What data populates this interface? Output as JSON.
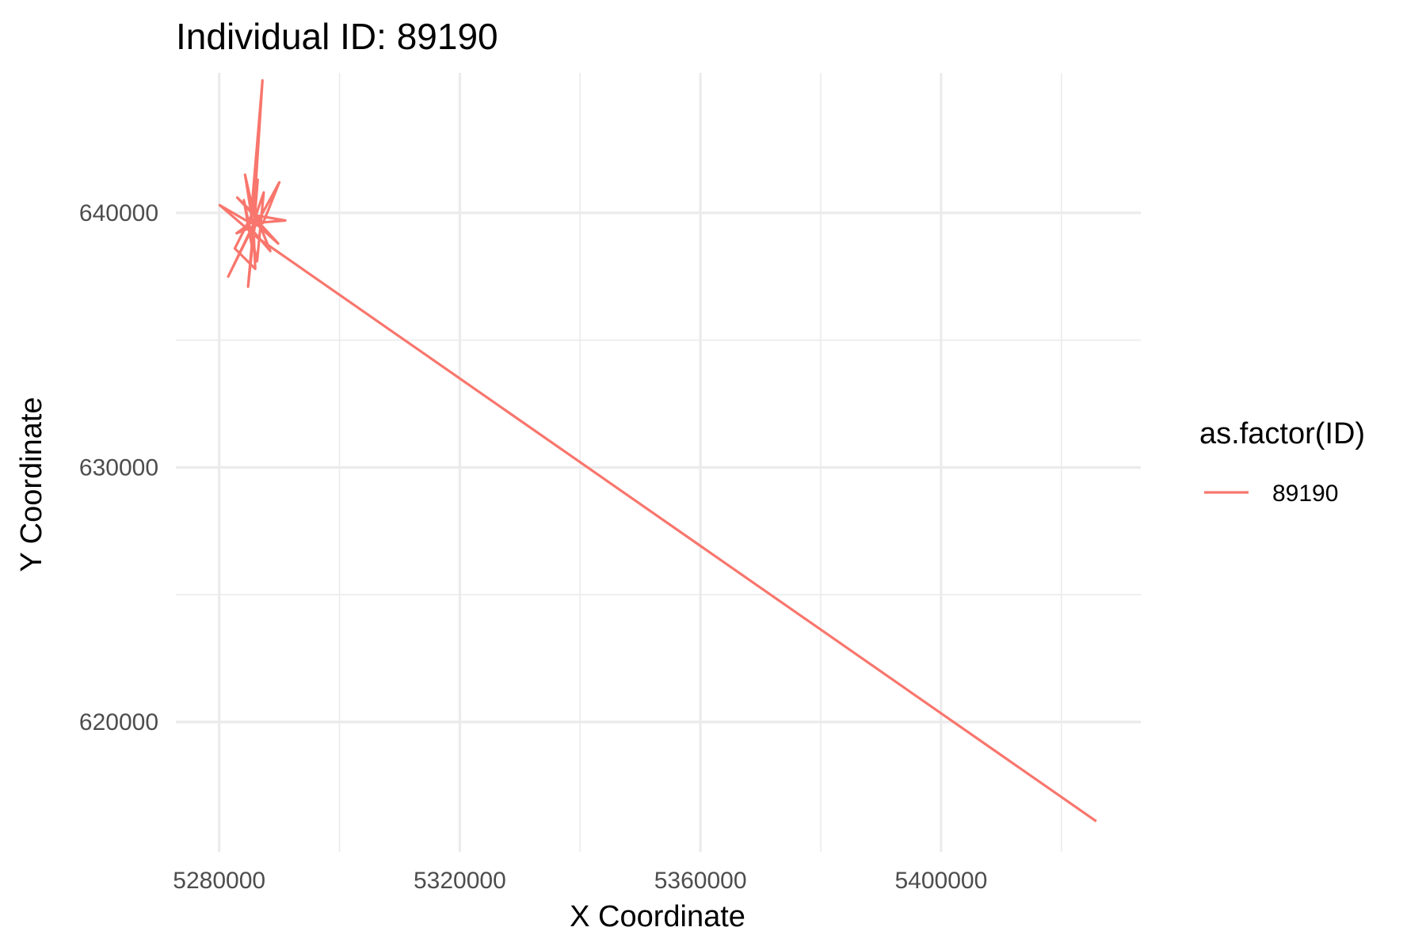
{
  "chart_data": {
    "type": "line",
    "title": "Individual ID: 89190",
    "xlabel": "X Coordinate",
    "ylabel": "Y Coordinate",
    "xlim": [
      5272800,
      5433200
    ],
    "ylim": [
      614900,
      645500
    ],
    "x_ticks": [
      5280000,
      5320000,
      5360000,
      5400000
    ],
    "x_tick_labels": [
      "5280000",
      "5320000",
      "5360000",
      "5400000"
    ],
    "y_ticks": [
      620000,
      630000,
      640000
    ],
    "y_tick_labels": [
      "620000",
      "630000",
      "640000"
    ],
    "x_minor_ticks": [
      5300000,
      5340000,
      5380000,
      5420000
    ],
    "y_minor_ticks": [
      625000,
      635000
    ],
    "grid": true,
    "legend": {
      "title": "as.factor(ID)",
      "position": "right"
    },
    "series": [
      {
        "name": "89190",
        "color": "#F8766D",
        "points": [
          [
            5425800,
            616100
          ],
          [
            5286500,
            639000
          ],
          [
            5280100,
            640300
          ],
          [
            5285200,
            639600
          ],
          [
            5287200,
            645200
          ],
          [
            5285800,
            640100
          ],
          [
            5282600,
            638600
          ],
          [
            5286000,
            637800
          ],
          [
            5285700,
            639400
          ],
          [
            5284300,
            641500
          ],
          [
            5286000,
            639700
          ],
          [
            5284800,
            637100
          ],
          [
            5285700,
            639500
          ],
          [
            5281500,
            637500
          ],
          [
            5286200,
            639800
          ],
          [
            5283000,
            640600
          ],
          [
            5287300,
            639600
          ],
          [
            5290000,
            641200
          ],
          [
            5285600,
            639300
          ],
          [
            5288500,
            638500
          ],
          [
            5286100,
            639900
          ],
          [
            5291000,
            639700
          ],
          [
            5286000,
            639600
          ],
          [
            5289800,
            638800
          ],
          [
            5285900,
            639800
          ],
          [
            5286400,
            641300
          ],
          [
            5285500,
            638600
          ],
          [
            5284100,
            640500
          ],
          [
            5286300,
            638100
          ],
          [
            5287400,
            640800
          ],
          [
            5285800,
            639700
          ],
          [
            5282900,
            639200
          ],
          [
            5286100,
            639500
          ]
        ]
      }
    ]
  }
}
